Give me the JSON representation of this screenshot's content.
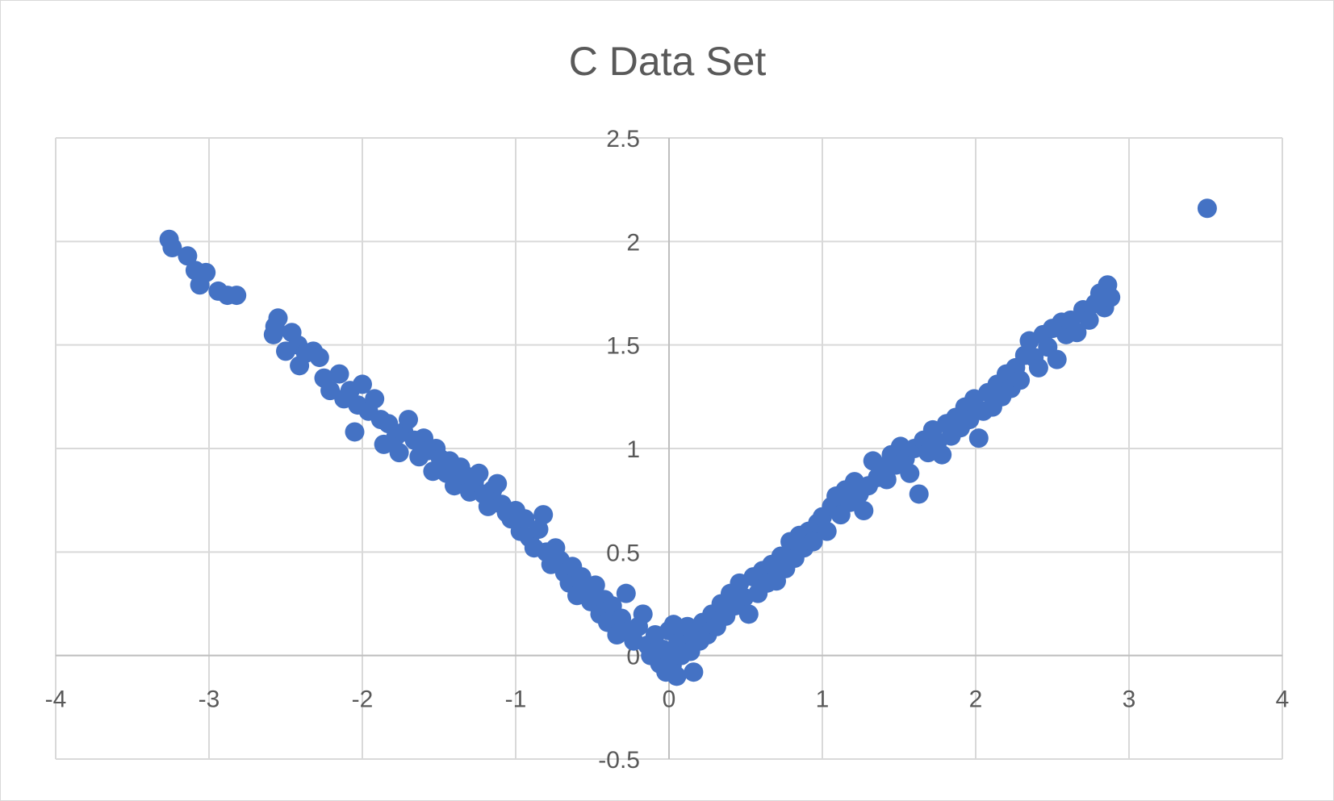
{
  "chart_data": {
    "type": "scatter",
    "title": "C Data Set",
    "xlabel": "",
    "ylabel": "",
    "xlim": [
      -4,
      4
    ],
    "ylim": [
      -0.5,
      2.5
    ],
    "x_ticks": [
      -4,
      -3,
      -2,
      -1,
      0,
      1,
      2,
      3,
      4
    ],
    "y_ticks": [
      -0.5,
      0,
      0.5,
      1,
      1.5,
      2,
      2.5
    ],
    "x_tick_labels": [
      "-4",
      "-3",
      "-2",
      "-1",
      "0",
      "1",
      "2",
      "3",
      "4"
    ],
    "y_tick_labels": [
      "-0.5",
      "0",
      "0.5",
      "1",
      "1.5",
      "2",
      "2.5"
    ],
    "grid": true,
    "legend": "none",
    "marker_color": "#4472C4",
    "gridline_color": "#d9d9d9",
    "axis_color": "#bfbfbf",
    "series": [
      {
        "points": [
          [
            -3.26,
            2.01
          ],
          [
            -3.24,
            1.97
          ],
          [
            -3.14,
            1.93
          ],
          [
            -3.09,
            1.86
          ],
          [
            -3.06,
            1.79
          ],
          [
            -3.02,
            1.85
          ],
          [
            -2.94,
            1.76
          ],
          [
            -2.88,
            1.74
          ],
          [
            -2.82,
            1.74
          ],
          [
            -2.57,
            1.59
          ],
          [
            -2.55,
            1.63
          ],
          [
            -2.58,
            1.55
          ],
          [
            -2.5,
            1.47
          ],
          [
            -2.46,
            1.56
          ],
          [
            -2.42,
            1.5
          ],
          [
            -2.41,
            1.4
          ],
          [
            -2.37,
            1.46
          ],
          [
            -2.32,
            1.47
          ],
          [
            -2.28,
            1.44
          ],
          [
            -2.25,
            1.34
          ],
          [
            -2.21,
            1.28
          ],
          [
            -2.15,
            1.36
          ],
          [
            -2.12,
            1.24
          ],
          [
            -2.08,
            1.28
          ],
          [
            -2.03,
            1.21
          ],
          [
            -2.0,
            1.31
          ],
          [
            -1.96,
            1.18
          ],
          [
            -1.92,
            1.24
          ],
          [
            -2.05,
            1.08
          ],
          [
            -1.88,
            1.14
          ],
          [
            -1.86,
            1.02
          ],
          [
            -1.83,
            1.12
          ],
          [
            -1.78,
            1.06
          ],
          [
            -1.76,
            0.98
          ],
          [
            -1.73,
            1.08
          ],
          [
            -1.7,
            1.14
          ],
          [
            -1.66,
            1.04
          ],
          [
            -1.63,
            0.96
          ],
          [
            -1.6,
            1.05
          ],
          [
            -1.57,
            0.99
          ],
          [
            -1.54,
            0.89
          ],
          [
            -1.52,
            1.0
          ],
          [
            -1.49,
            0.95
          ],
          [
            -1.45,
            0.88
          ],
          [
            -1.43,
            0.94
          ],
          [
            -1.4,
            0.82
          ],
          [
            -1.36,
            0.91
          ],
          [
            -1.33,
            0.87
          ],
          [
            -1.3,
            0.79
          ],
          [
            -1.27,
            0.84
          ],
          [
            -1.24,
            0.88
          ],
          [
            -1.21,
            0.78
          ],
          [
            -1.18,
            0.72
          ],
          [
            -1.15,
            0.8
          ],
          [
            -1.12,
            0.83
          ],
          [
            -1.09,
            0.73
          ],
          [
            -1.06,
            0.69
          ],
          [
            -1.03,
            0.66
          ],
          [
            -1.0,
            0.7
          ],
          [
            -0.97,
            0.6
          ],
          [
            -0.94,
            0.66
          ],
          [
            -0.91,
            0.57
          ],
          [
            -0.88,
            0.52
          ],
          [
            -0.85,
            0.61
          ],
          [
            -0.82,
            0.68
          ],
          [
            -0.8,
            0.5
          ],
          [
            -0.77,
            0.44
          ],
          [
            -0.74,
            0.52
          ],
          [
            -0.71,
            0.46
          ],
          [
            -0.68,
            0.4
          ],
          [
            -0.65,
            0.35
          ],
          [
            -0.63,
            0.43
          ],
          [
            -0.6,
            0.29
          ],
          [
            -0.57,
            0.38
          ],
          [
            -0.54,
            0.32
          ],
          [
            -0.51,
            0.26
          ],
          [
            -0.48,
            0.34
          ],
          [
            -0.45,
            0.2
          ],
          [
            -0.42,
            0.27
          ],
          [
            -0.4,
            0.16
          ],
          [
            -0.37,
            0.24
          ],
          [
            -0.34,
            0.1
          ],
          [
            -0.31,
            0.18
          ],
          [
            -0.28,
            0.3
          ],
          [
            -0.26,
            0.12
          ],
          [
            -0.23,
            0.07
          ],
          [
            -0.2,
            0.14
          ],
          [
            -0.17,
            0.2
          ],
          [
            -0.14,
            0.05
          ],
          [
            -0.12,
            0.0
          ],
          [
            -0.09,
            0.1
          ],
          [
            -0.06,
            -0.04
          ],
          [
            -0.04,
            0.03
          ],
          [
            -0.02,
            -0.08
          ],
          [
            0.0,
            0.12
          ],
          [
            0.0,
            0.02
          ],
          [
            0.02,
            -0.05
          ],
          [
            0.03,
            0.15
          ],
          [
            0.05,
            -0.1
          ],
          [
            0.06,
            0.06
          ],
          [
            0.08,
            0.0
          ],
          [
            0.1,
            0.08
          ],
          [
            0.12,
            0.14
          ],
          [
            0.14,
            0.02
          ],
          [
            0.16,
            -0.08
          ],
          [
            0.18,
            0.12
          ],
          [
            0.2,
            0.07
          ],
          [
            0.22,
            0.16
          ],
          [
            0.25,
            0.1
          ],
          [
            0.28,
            0.2
          ],
          [
            0.31,
            0.14
          ],
          [
            0.34,
            0.25
          ],
          [
            0.37,
            0.19
          ],
          [
            0.4,
            0.3
          ],
          [
            0.43,
            0.24
          ],
          [
            0.46,
            0.35
          ],
          [
            0.49,
            0.28
          ],
          [
            0.52,
            0.2
          ],
          [
            0.55,
            0.38
          ],
          [
            0.58,
            0.3
          ],
          [
            0.61,
            0.41
          ],
          [
            0.64,
            0.35
          ],
          [
            0.67,
            0.44
          ],
          [
            0.7,
            0.36
          ],
          [
            0.73,
            0.48
          ],
          [
            0.76,
            0.42
          ],
          [
            0.79,
            0.55
          ],
          [
            0.82,
            0.47
          ],
          [
            0.85,
            0.58
          ],
          [
            0.88,
            0.52
          ],
          [
            0.91,
            0.6
          ],
          [
            0.94,
            0.55
          ],
          [
            0.97,
            0.64
          ],
          [
            1.0,
            0.67
          ],
          [
            1.03,
            0.6
          ],
          [
            1.06,
            0.72
          ],
          [
            1.09,
            0.77
          ],
          [
            1.12,
            0.68
          ],
          [
            1.15,
            0.8
          ],
          [
            1.18,
            0.74
          ],
          [
            1.21,
            0.84
          ],
          [
            1.24,
            0.78
          ],
          [
            1.27,
            0.7
          ],
          [
            1.3,
            0.82
          ],
          [
            1.33,
            0.94
          ],
          [
            1.36,
            0.86
          ],
          [
            1.39,
            0.91
          ],
          [
            1.42,
            0.85
          ],
          [
            1.45,
            0.97
          ],
          [
            1.48,
            0.92
          ],
          [
            1.51,
            1.01
          ],
          [
            1.54,
            0.95
          ],
          [
            1.57,
            0.88
          ],
          [
            1.6,
            1.0
          ],
          [
            1.63,
            0.78
          ],
          [
            1.66,
            1.04
          ],
          [
            1.69,
            0.98
          ],
          [
            1.72,
            1.09
          ],
          [
            1.75,
            1.03
          ],
          [
            1.78,
            0.97
          ],
          [
            1.81,
            1.12
          ],
          [
            1.84,
            1.06
          ],
          [
            1.87,
            1.15
          ],
          [
            1.9,
            1.1
          ],
          [
            1.93,
            1.2
          ],
          [
            1.96,
            1.14
          ],
          [
            1.99,
            1.24
          ],
          [
            2.02,
            1.05
          ],
          [
            2.05,
            1.18
          ],
          [
            2.08,
            1.27
          ],
          [
            2.11,
            1.2
          ],
          [
            2.14,
            1.31
          ],
          [
            2.17,
            1.25
          ],
          [
            2.2,
            1.36
          ],
          [
            2.23,
            1.29
          ],
          [
            2.26,
            1.39
          ],
          [
            2.29,
            1.33
          ],
          [
            2.32,
            1.45
          ],
          [
            2.35,
            1.52
          ],
          [
            2.38,
            1.44
          ],
          [
            2.41,
            1.39
          ],
          [
            2.44,
            1.55
          ],
          [
            2.47,
            1.49
          ],
          [
            2.5,
            1.58
          ],
          [
            2.53,
            1.43
          ],
          [
            2.56,
            1.61
          ],
          [
            2.59,
            1.55
          ],
          [
            2.62,
            1.62
          ],
          [
            2.66,
            1.56
          ],
          [
            2.7,
            1.67
          ],
          [
            2.74,
            1.62
          ],
          [
            2.78,
            1.7
          ],
          [
            2.81,
            1.75
          ],
          [
            2.84,
            1.68
          ],
          [
            2.86,
            1.79
          ],
          [
            2.88,
            1.73
          ],
          [
            3.51,
            2.16
          ]
        ]
      }
    ]
  }
}
